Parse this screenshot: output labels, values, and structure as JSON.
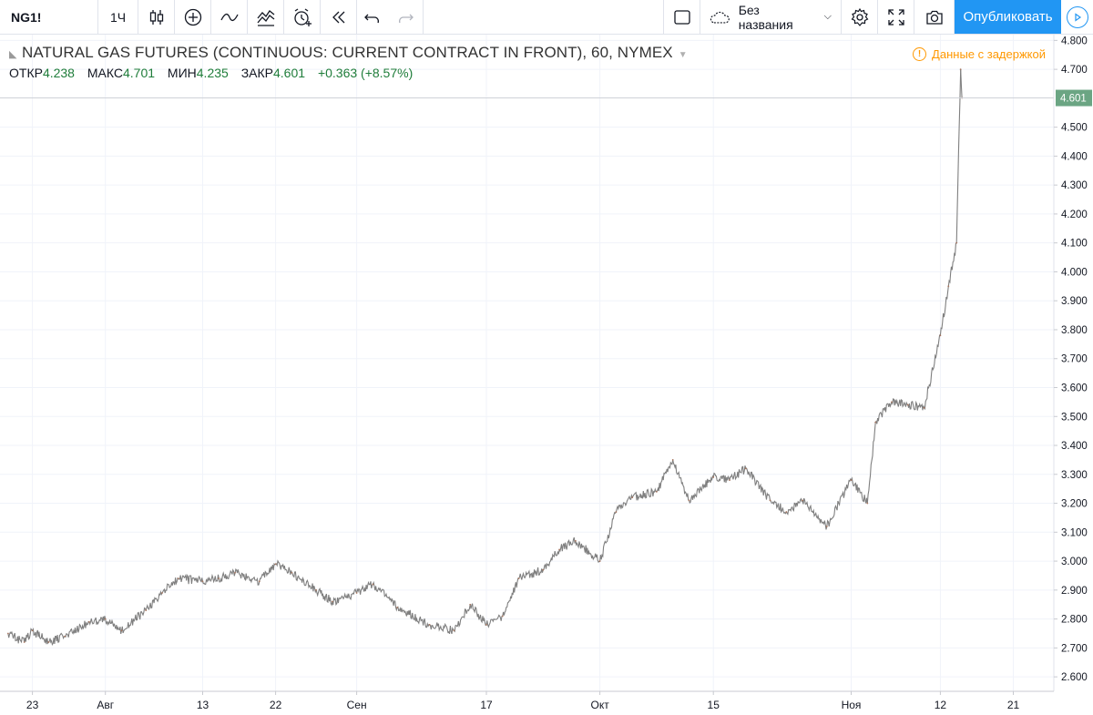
{
  "toolbar": {
    "symbol": "NG1!",
    "interval": "1Ч",
    "layout_name": "Без названия",
    "publish_label": "Опубликовать"
  },
  "legend": {
    "title": "NATURAL GAS FUTURES (CONTINUOUS: CURRENT CONTRACT IN FRONT), 60, NYMEX",
    "open_label": "ОТКР",
    "open": "4.238",
    "high_label": "МАКС",
    "high": "4.701",
    "low_label": "МИН",
    "low": "4.235",
    "close_label": "ЗАКР",
    "close": "4.601",
    "change": "+0.363 (+8.57%)"
  },
  "delayed_notice": "Данные с задержкой",
  "chart_data": {
    "type": "line",
    "title": "NATURAL GAS FUTURES (CONTINUOUS: CURRENT CONTRACT IN FRONT), 60, NYMEX",
    "ylim": [
      2.55,
      4.82
    ],
    "y_ticks": [
      "4.800",
      "4.700",
      "4.601",
      "4.500",
      "4.400",
      "4.300",
      "4.200",
      "4.100",
      "4.000",
      "3.900",
      "3.800",
      "3.700",
      "3.600",
      "3.500",
      "3.400",
      "3.300",
      "3.200",
      "3.100",
      "3.000",
      "2.900",
      "2.800",
      "2.700",
      "2.600"
    ],
    "x_tick_labels": [
      "23",
      "Авг",
      "13",
      "22",
      "Сен",
      "17",
      "Окт",
      "15",
      "Ноя",
      "12",
      "21"
    ],
    "x_tick_dates": [
      "2018-07-23",
      "2018-08-01",
      "2018-08-13",
      "2018-08-22",
      "2018-09-01",
      "2018-09-17",
      "2018-10-01",
      "2018-10-15",
      "2018-11-01",
      "2018-11-12",
      "2018-11-21"
    ],
    "last_price": 4.601,
    "last_price_color": "#6ba583",
    "grid": true,
    "series": [
      {
        "color": "#7f7f7f",
        "points": [
          [
            "2018-07-20",
            2.75
          ],
          [
            "2018-07-22",
            2.72
          ],
          [
            "2018-07-23",
            2.76
          ],
          [
            "2018-07-25",
            2.72
          ],
          [
            "2018-07-27",
            2.74
          ],
          [
            "2018-07-30",
            2.79
          ],
          [
            "2018-08-01",
            2.8
          ],
          [
            "2018-08-03",
            2.76
          ],
          [
            "2018-08-06",
            2.83
          ],
          [
            "2018-08-08",
            2.89
          ],
          [
            "2018-08-10",
            2.94
          ],
          [
            "2018-08-13",
            2.93
          ],
          [
            "2018-08-15",
            2.94
          ],
          [
            "2018-08-17",
            2.96
          ],
          [
            "2018-08-20",
            2.93
          ],
          [
            "2018-08-22",
            2.99
          ],
          [
            "2018-08-24",
            2.96
          ],
          [
            "2018-08-27",
            2.9
          ],
          [
            "2018-08-29",
            2.86
          ],
          [
            "2018-09-01",
            2.89
          ],
          [
            "2018-09-03",
            2.92
          ],
          [
            "2018-09-06",
            2.84
          ],
          [
            "2018-09-10",
            2.78
          ],
          [
            "2018-09-13",
            2.76
          ],
          [
            "2018-09-15",
            2.85
          ],
          [
            "2018-09-17",
            2.78
          ],
          [
            "2018-09-19",
            2.81
          ],
          [
            "2018-09-21",
            2.94
          ],
          [
            "2018-09-24",
            2.97
          ],
          [
            "2018-09-26",
            3.04
          ],
          [
            "2018-09-28",
            3.07
          ],
          [
            "2018-10-01",
            3.0
          ],
          [
            "2018-10-03",
            3.17
          ],
          [
            "2018-10-05",
            3.22
          ],
          [
            "2018-10-08",
            3.24
          ],
          [
            "2018-10-10",
            3.35
          ],
          [
            "2018-10-12",
            3.21
          ],
          [
            "2018-10-15",
            3.29
          ],
          [
            "2018-10-17",
            3.28
          ],
          [
            "2018-10-19",
            3.32
          ],
          [
            "2018-10-22",
            3.21
          ],
          [
            "2018-10-24",
            3.17
          ],
          [
            "2018-10-26",
            3.21
          ],
          [
            "2018-10-29",
            3.12
          ],
          [
            "2018-11-01",
            3.28
          ],
          [
            "2018-11-03",
            3.2
          ],
          [
            "2018-11-04",
            3.48
          ],
          [
            "2018-11-06",
            3.55
          ],
          [
            "2018-11-08",
            3.54
          ],
          [
            "2018-11-10",
            3.53
          ],
          [
            "2018-11-12",
            3.78
          ],
          [
            "2018-11-13",
            3.95
          ],
          [
            "2018-11-14",
            4.1
          ],
          [
            "2018-11-14T12",
            4.7
          ],
          [
            "2018-11-14T16",
            4.601
          ]
        ]
      }
    ]
  }
}
